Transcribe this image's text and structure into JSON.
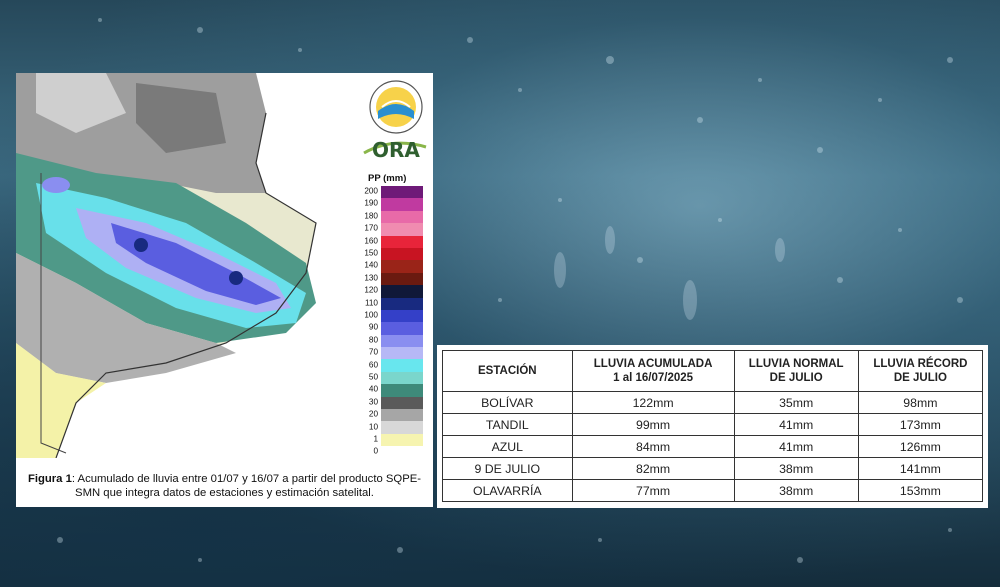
{
  "figure": {
    "caption_bold": "Figura 1",
    "caption_rest": ": Acumulado de lluvia entre 01/07 y 16/07 a partir del producto SQPE-SMN que integra datos de estaciones y estimación satelital.",
    "logo1_name": "smn-logo",
    "logo2_text": "ORA",
    "scale_title": "PP (mm)",
    "scale": [
      {
        "label": "200",
        "color": "#6e1a78"
      },
      {
        "label": "190",
        "color": "#c03aa0"
      },
      {
        "label": "180",
        "color": "#e86aa8"
      },
      {
        "label": "170",
        "color": "#f08cb0"
      },
      {
        "label": "160",
        "color": "#e8243a"
      },
      {
        "label": "150",
        "color": "#c81422"
      },
      {
        "label": "140",
        "color": "#9a2418"
      },
      {
        "label": "130",
        "color": "#6a1a10"
      },
      {
        "label": "120",
        "color": "#101838"
      },
      {
        "label": "110",
        "color": "#182a80"
      },
      {
        "label": "100",
        "color": "#3440c8"
      },
      {
        "label": "90",
        "color": "#5a5ee0"
      },
      {
        "label": "80",
        "color": "#8a8ef0"
      },
      {
        "label": "70",
        "color": "#b6b8f6"
      },
      {
        "label": "60",
        "color": "#68e6ee"
      },
      {
        "label": "50",
        "color": "#7ad6cc"
      },
      {
        "label": "40",
        "color": "#3e8a7a"
      },
      {
        "label": "30",
        "color": "#5a5a5a"
      },
      {
        "label": "20",
        "color": "#a6a6a6"
      },
      {
        "label": "10",
        "color": "#d8d8d8"
      },
      {
        "label": "1",
        "color": "#f6f4b0"
      },
      {
        "label": "0",
        "color": "#ffffff"
      }
    ]
  },
  "table": {
    "headers": [
      "ESTACIÓN",
      "LLUVIA ACUMULADA\n1 al 16/07/2025",
      "LLUVIA NORMAL\nDE JULIO",
      "LLUVIA RÉCORD\nDE JULIO"
    ],
    "rows": [
      [
        "BOLÍVAR",
        "122mm",
        "35mm",
        "98mm"
      ],
      [
        "TANDIL",
        "99mm",
        "41mm",
        "173mm"
      ],
      [
        "AZUL",
        "84mm",
        "41mm",
        "126mm"
      ],
      [
        "9 DE JULIO",
        "82mm",
        "38mm",
        "141mm"
      ],
      [
        "OLAVARRÍA",
        "77mm",
        "38mm",
        "153mm"
      ]
    ]
  }
}
